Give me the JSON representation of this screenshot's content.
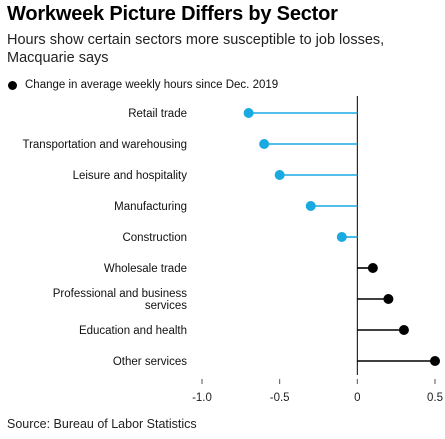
{
  "title": "Workweek Picture Differs by Sector",
  "subtitle": "Hours show certain sectors more susceptible to job losses, Macquarie says",
  "source": "Source: Bureau of Labor Statistics",
  "colors": {
    "negative": "#1aa9e0",
    "positive": "#000000",
    "zero_line": "#000000",
    "tick": "#555555"
  },
  "chart_data": {
    "type": "lollipop",
    "orientation": "horizontal",
    "legend": "Change in average weekly hours since Dec. 2019",
    "legend_position": "top-left",
    "grid": false,
    "xlim": [
      -1.0,
      0.5
    ],
    "xticks": [
      -1.0,
      -0.5,
      0,
      0.5
    ],
    "xtick_labels": [
      "-1.0",
      "-0.5",
      "0",
      "0.5"
    ],
    "categories": [
      [
        "Retail trade"
      ],
      [
        "Transportation and warehousing"
      ],
      [
        "Leisure and hospitality"
      ],
      [
        "Manufacturing"
      ],
      [
        "Construction"
      ],
      [
        "Wholesale trade"
      ],
      [
        "Professional and business",
        "services"
      ],
      [
        "Education and health"
      ],
      [
        "Other services"
      ]
    ],
    "values": [
      -0.7,
      -0.6,
      -0.5,
      -0.3,
      -0.1,
      0.1,
      0.2,
      0.3,
      0.5
    ]
  }
}
